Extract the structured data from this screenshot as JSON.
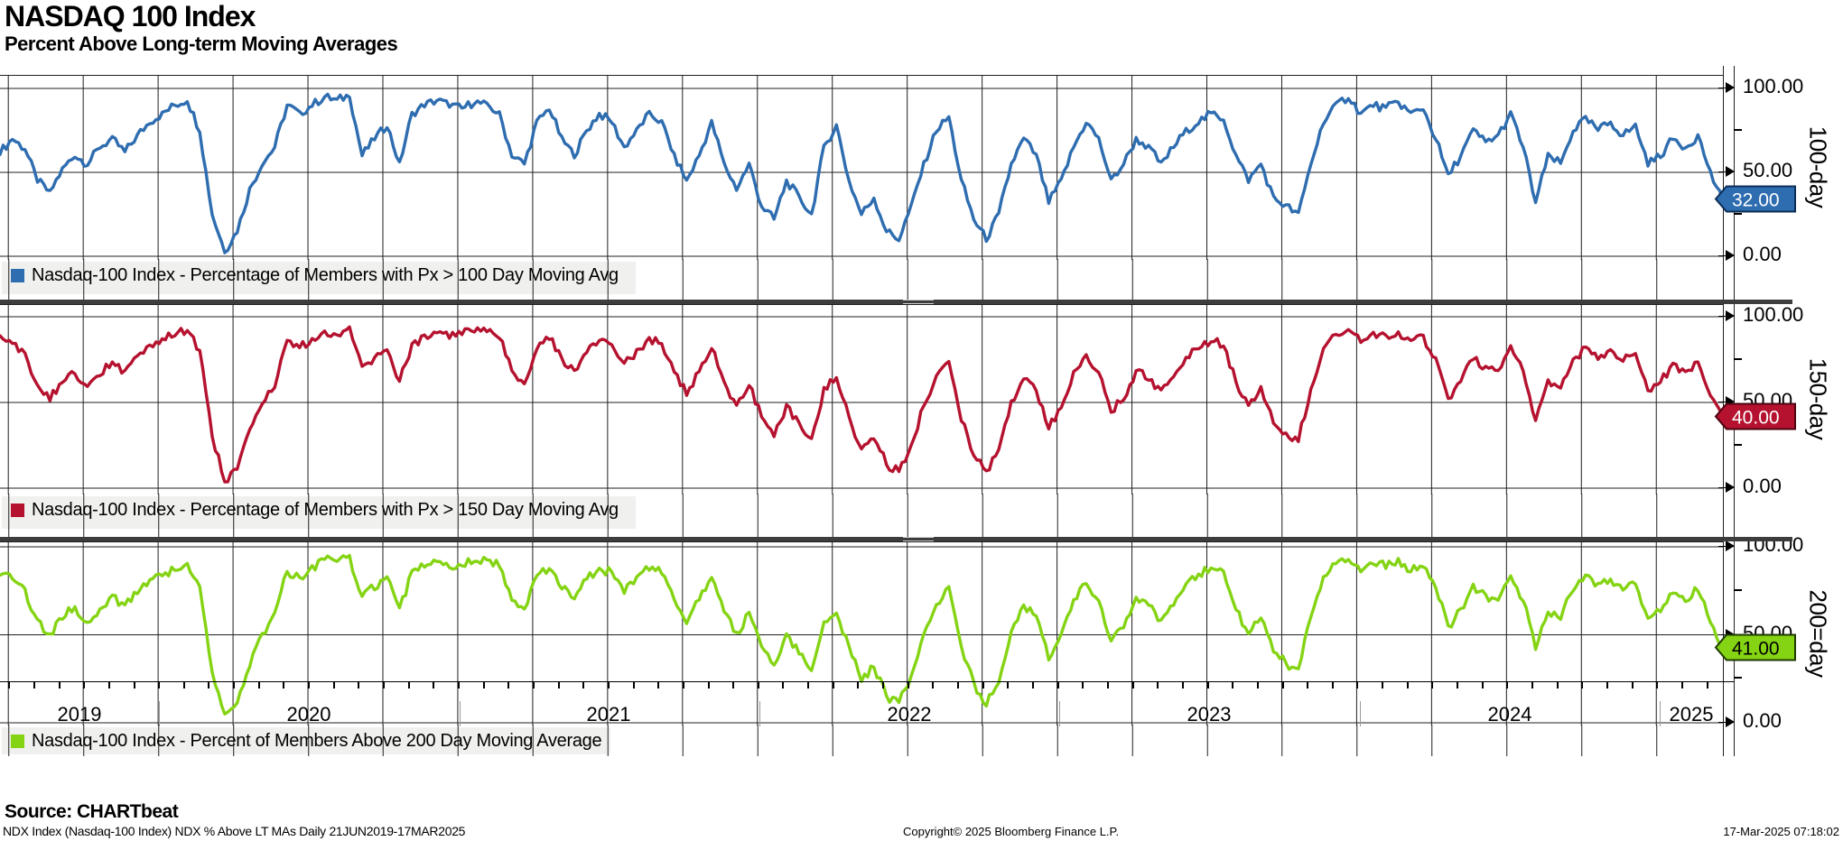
{
  "header": {
    "title": "NASDAQ 100 Index",
    "subtitle": "Percent Above Long-term Moving Averages"
  },
  "footer": {
    "source": "Source: CHARTbeat",
    "info_left": "NDX Index (Nasdaq-100 Index) NDX % Above LT MAs  Daily 21JUN2019-17MAR2025",
    "copyright": "Copyright© 2025 Bloomberg Finance L.P.",
    "timestamp": "17-Mar-2025 07:18:02"
  },
  "chart_data": {
    "type": "line",
    "title": "NASDAQ 100 Index",
    "subtitle": "Percent Above Long-term Moving Averages",
    "x_range": {
      "start": "21JUN2019",
      "end": "17MAR2025",
      "frequency": "Daily",
      "step_months_per_point": 0.5
    },
    "x_tick_years": [
      "2019",
      "2020",
      "2021",
      "2022",
      "2023",
      "2024",
      "2025"
    ],
    "ylim": [
      0,
      100
    ],
    "ytick_labels": [
      "100.00",
      "50.00",
      "0.00"
    ],
    "grid": "on",
    "legend_position": "bottom-left-per-panel",
    "panels": [
      {
        "side_label": "100-day",
        "legend": "Nasdaq-100 Index - Percentage of Members with Px > 100 Day Moving Avg",
        "color": "#2e6db0",
        "tag_border": "#0d2d55",
        "tag_text_color": "#ffffff",
        "last_value": 32,
        "tag_label": "32.00",
        "values": [
          62,
          70,
          64,
          45,
          38,
          52,
          60,
          55,
          65,
          70,
          62,
          72,
          80,
          85,
          90,
          93,
          75,
          25,
          3,
          15,
          40,
          55,
          65,
          90,
          85,
          90,
          95,
          93,
          96,
          60,
          70,
          78,
          55,
          85,
          90,
          93,
          90,
          88,
          92,
          90,
          85,
          60,
          55,
          80,
          88,
          70,
          60,
          75,
          85,
          80,
          65,
          75,
          85,
          80,
          60,
          45,
          60,
          80,
          55,
          40,
          55,
          30,
          22,
          45,
          35,
          25,
          65,
          78,
          45,
          25,
          35,
          15,
          10,
          30,
          55,
          75,
          83,
          45,
          22,
          10,
          25,
          55,
          70,
          60,
          32,
          45,
          65,
          80,
          70,
          45,
          55,
          70,
          65,
          55,
          65,
          75,
          80,
          85,
          82,
          60,
          45,
          55,
          35,
          30,
          25,
          55,
          80,
          90,
          95,
          85,
          90,
          88,
          92,
          85,
          88,
          70,
          48,
          60,
          75,
          68,
          72,
          85,
          65,
          32,
          60,
          55,
          75,
          82,
          75,
          80,
          72,
          78,
          55,
          60,
          70,
          65,
          72,
          50,
          32
        ]
      },
      {
        "side_label": "150-day",
        "legend": "Nasdaq-100 Index - Percentage of Members with Px > 150 Day Moving Avg",
        "color": "#b5122f",
        "tag_border": "#4d0410",
        "tag_text_color": "#ffffff",
        "last_value": 40,
        "tag_label": "40.00",
        "values": [
          88,
          85,
          78,
          60,
          52,
          62,
          68,
          58,
          66,
          74,
          68,
          76,
          84,
          86,
          90,
          92,
          80,
          30,
          4,
          12,
          35,
          48,
          60,
          85,
          82,
          86,
          92,
          90,
          93,
          70,
          75,
          80,
          62,
          84,
          88,
          90,
          88,
          90,
          92,
          91,
          88,
          68,
          62,
          82,
          88,
          75,
          68,
          80,
          87,
          84,
          72,
          80,
          87,
          84,
          68,
          55,
          68,
          82,
          62,
          48,
          60,
          42,
          30,
          48,
          38,
          28,
          58,
          65,
          42,
          22,
          30,
          14,
          10,
          26,
          48,
          65,
          75,
          40,
          20,
          9,
          22,
          50,
          65,
          58,
          35,
          48,
          68,
          78,
          68,
          45,
          52,
          68,
          64,
          56,
          66,
          76,
          82,
          86,
          84,
          62,
          48,
          58,
          38,
          32,
          28,
          58,
          82,
          90,
          93,
          86,
          90,
          88,
          91,
          86,
          88,
          76,
          52,
          62,
          76,
          70,
          68,
          82,
          68,
          40,
          62,
          58,
          74,
          82,
          76,
          80,
          74,
          79,
          58,
          62,
          72,
          68,
          74,
          55,
          40
        ]
      },
      {
        "side_label": "200=day",
        "legend": "Nasdaq-100 Index - Percent of Members Above 200 Day Moving Average",
        "color": "#85d414",
        "tag_border": "#1e3a00",
        "tag_text_color": "#000000",
        "last_value": 41,
        "tag_label": "41.00",
        "values": [
          85,
          82,
          75,
          58,
          50,
          60,
          66,
          56,
          64,
          72,
          66,
          74,
          82,
          84,
          88,
          90,
          78,
          28,
          4,
          10,
          32,
          50,
          62,
          86,
          83,
          88,
          93,
          91,
          94,
          72,
          77,
          82,
          64,
          85,
          89,
          91,
          89,
          90,
          93,
          92,
          89,
          70,
          64,
          83,
          89,
          77,
          70,
          82,
          88,
          85,
          74,
          82,
          88,
          85,
          70,
          57,
          70,
          83,
          64,
          50,
          62,
          44,
          32,
          50,
          40,
          30,
          56,
          62,
          44,
          24,
          32,
          15,
          11,
          27,
          50,
          66,
          76,
          42,
          22,
          10,
          24,
          52,
          67,
          60,
          37,
          50,
          70,
          80,
          70,
          47,
          54,
          70,
          66,
          58,
          68,
          78,
          84,
          88,
          86,
          64,
          50,
          60,
          40,
          34,
          30,
          60,
          84,
          91,
          94,
          87,
          91,
          89,
          92,
          87,
          89,
          78,
          54,
          64,
          78,
          72,
          70,
          84,
          70,
          42,
          64,
          60,
          76,
          84,
          78,
          82,
          76,
          80,
          60,
          64,
          74,
          70,
          76,
          57,
          41
        ]
      }
    ]
  }
}
